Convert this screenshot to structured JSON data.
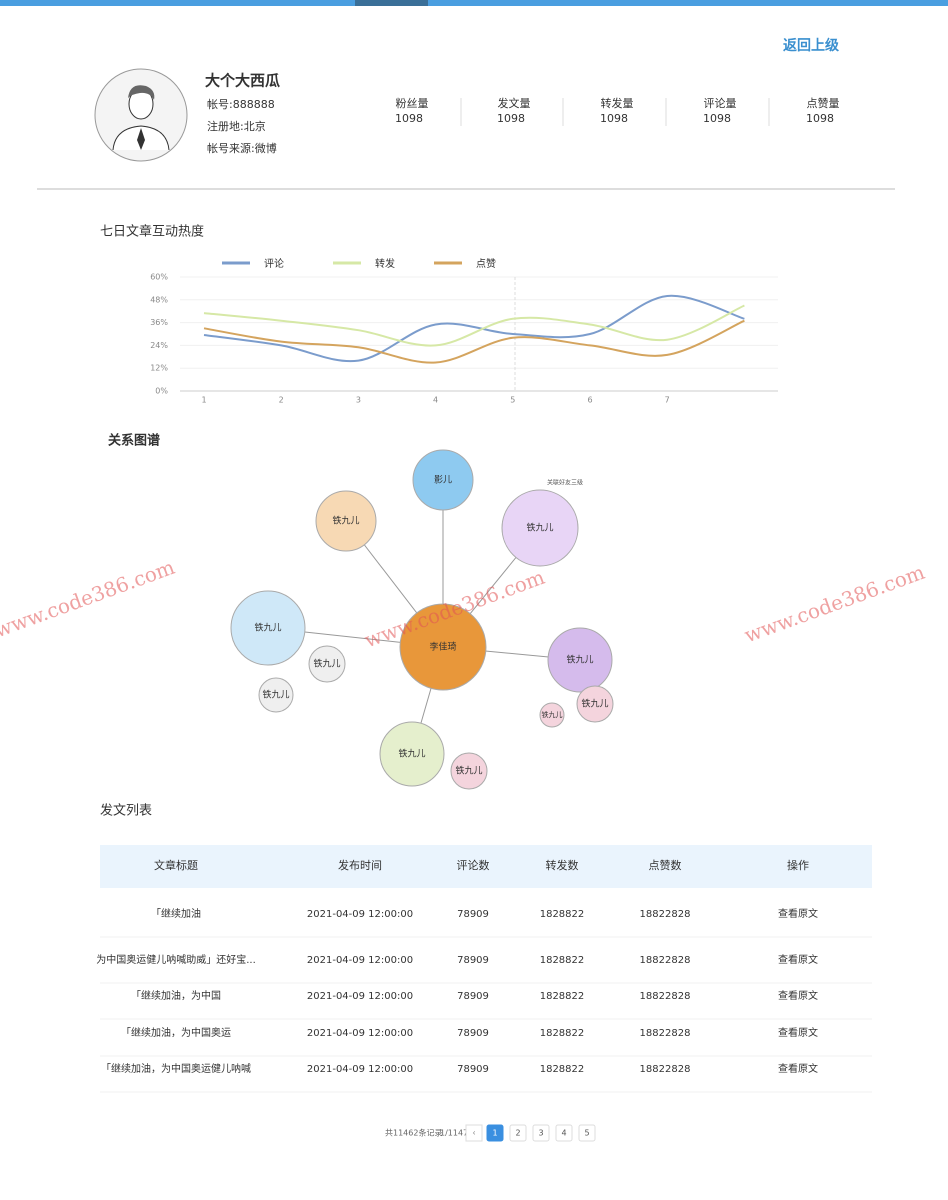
{
  "header": {
    "back": "返回上级",
    "name": "大个大西瓜",
    "account": "帐号:888888",
    "region": "注册地:北京",
    "source": "帐号来源:微博"
  },
  "stats": [
    {
      "label": "粉丝量",
      "value": 1098
    },
    {
      "label": "发文量",
      "value": 1098
    },
    {
      "label": "转发量",
      "value": 1098
    },
    {
      "label": "评论量",
      "value": 1098
    },
    {
      "label": "点赞量",
      "value": 1098
    }
  ],
  "chart_data": {
    "type": "line",
    "title": "七日文章互动热度",
    "categories": [
      "1",
      "2",
      "3",
      "4",
      "5",
      "6",
      "7",
      null
    ],
    "series": [
      {
        "name": "评论",
        "color": "#7b9ccc",
        "values": [
          29.5,
          24,
          16,
          35,
          30,
          30,
          50,
          38
        ]
      },
      {
        "name": "转发",
        "color": "#d6e8a6",
        "values": [
          41,
          37,
          32,
          24,
          38,
          35,
          27,
          45
        ]
      },
      {
        "name": "点赞",
        "color": "#d4a45e",
        "values": [
          33,
          26,
          23,
          15,
          28,
          24,
          19,
          37
        ]
      }
    ],
    "ylim": [
      0,
      60
    ],
    "yticks": [
      {
        "value": 0,
        "label": "0%"
      },
      {
        "value": 12,
        "label": "12%"
      },
      {
        "value": 24,
        "label": "24%"
      },
      {
        "value": 36,
        "label": "36%"
      },
      {
        "value": 48,
        "label": "48%"
      },
      {
        "value": 60,
        "label": "60%"
      }
    ],
    "grid": true,
    "legend": "top"
  },
  "graph": {
    "title": "关系图谱",
    "annotation": "关联好友三级",
    "nodes": [
      {
        "label": "李佳琦",
        "color": "#e8973a"
      },
      {
        "label": "影儿",
        "color": "#8ecaf0"
      },
      {
        "label": "铁九儿",
        "color": "#f7d9b4"
      },
      {
        "label": "铁九儿",
        "color": "#e8d5f6"
      },
      {
        "label": "铁九儿",
        "color": "#cfe8f8"
      },
      {
        "label": "铁九儿",
        "color": "#efefef"
      },
      {
        "label": "铁九儿",
        "color": "#efefef"
      },
      {
        "label": "铁九儿",
        "color": "#d5bbec"
      },
      {
        "label": "铁九儿",
        "color": "#f4d4dd"
      },
      {
        "label": "铁九儿",
        "color": "#f4d4dd"
      },
      {
        "label": "铁九儿",
        "color": "#e5efcd"
      },
      {
        "label": "铁九儿",
        "color": "#f4d4dd"
      }
    ]
  },
  "table": {
    "title": "发文列表",
    "headers": [
      "文章标题",
      "发布时间",
      "评论数",
      "转发数",
      "点赞数",
      "操作"
    ],
    "rows": [
      [
        "「继续加油",
        "2021-04-09 12:00:00",
        78909,
        1828822,
        18822828,
        "查看原文"
      ],
      [
        "为中国奥运健儿呐喊助威」还好宝...",
        "2021-04-09 12:00:00",
        78909,
        1828822,
        18822828,
        "查看原文"
      ],
      [
        "「继续加油，为中国",
        "2021-04-09 12:00:00",
        78909,
        1828822,
        18822828,
        "查看原文"
      ],
      [
        "「继续加油，为中国奥运",
        "2021-04-09 12:00:00",
        78909,
        1828822,
        18822828,
        "查看原文"
      ],
      [
        "「继续加油，为中国奥运健儿呐喊",
        "2021-04-09 12:00:00",
        78909,
        1828822,
        18822828,
        "查看原文"
      ]
    ]
  },
  "pagination": {
    "total": "共11462条记录",
    "page": "1/1147",
    "prev": "‹",
    "pages": [
      1,
      2,
      3,
      4,
      5
    ]
  },
  "watermark": "www.code386.com"
}
